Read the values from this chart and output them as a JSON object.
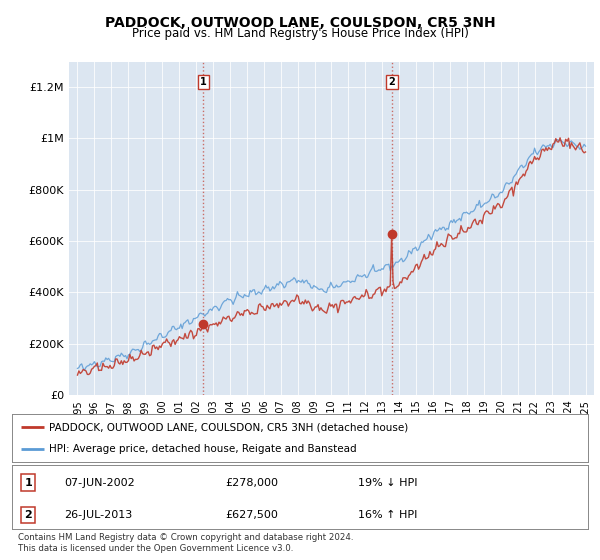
{
  "title": "PADDOCK, OUTWOOD LANE, COULSDON, CR5 3NH",
  "subtitle": "Price paid vs. HM Land Registry's House Price Index (HPI)",
  "red_label": "PADDOCK, OUTWOOD LANE, COULSDON, CR5 3NH (detached house)",
  "blue_label": "HPI: Average price, detached house, Reigate and Banstead",
  "sale1_date": "07-JUN-2002",
  "sale1_price": 278000,
  "sale1_pct": "19% ↓ HPI",
  "sale2_date": "26-JUL-2013",
  "sale2_price": 627500,
  "sale2_pct": "16% ↑ HPI",
  "footnote": "Contains HM Land Registry data © Crown copyright and database right 2024.\nThis data is licensed under the Open Government Licence v3.0.",
  "ylim": [
    0,
    1300000
  ],
  "yticks": [
    0,
    200000,
    400000,
    600000,
    800000,
    1000000,
    1200000
  ],
  "ytick_labels": [
    "£0",
    "£200K",
    "£400K",
    "£600K",
    "£800K",
    "£1M",
    "£1.2M"
  ],
  "background_color": "#dce6f1",
  "red_color": "#c0392b",
  "blue_color": "#5b9bd5",
  "sale1_x": 2002.44,
  "sale2_x": 2013.56,
  "xmin": 1994.5,
  "xmax": 2025.5,
  "fig_width": 6.0,
  "fig_height": 5.6,
  "dpi": 100
}
